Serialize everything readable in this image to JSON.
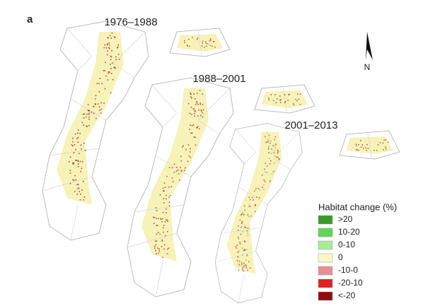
{
  "panel_label": "a",
  "periods": [
    {
      "label": "1976–1988"
    },
    {
      "label": "1988–2001"
    },
    {
      "label": "2001–2013"
    }
  ],
  "north": "N",
  "legend": {
    "title": "Habitat change (%)",
    "items": [
      {
        "label": ">20",
        "color": "#3a9a2a"
      },
      {
        "label": "10-20",
        "color": "#5ed65a"
      },
      {
        "label": "0-10",
        "color": "#a8ea9a"
      },
      {
        "label": "0",
        "color": "#fbf7c8"
      },
      {
        "label": "-10-0",
        "color": "#e89090"
      },
      {
        "label": "-20-10",
        "color": "#e02020"
      },
      {
        "label": "<-20",
        "color": "#8b0d0d"
      }
    ]
  }
}
